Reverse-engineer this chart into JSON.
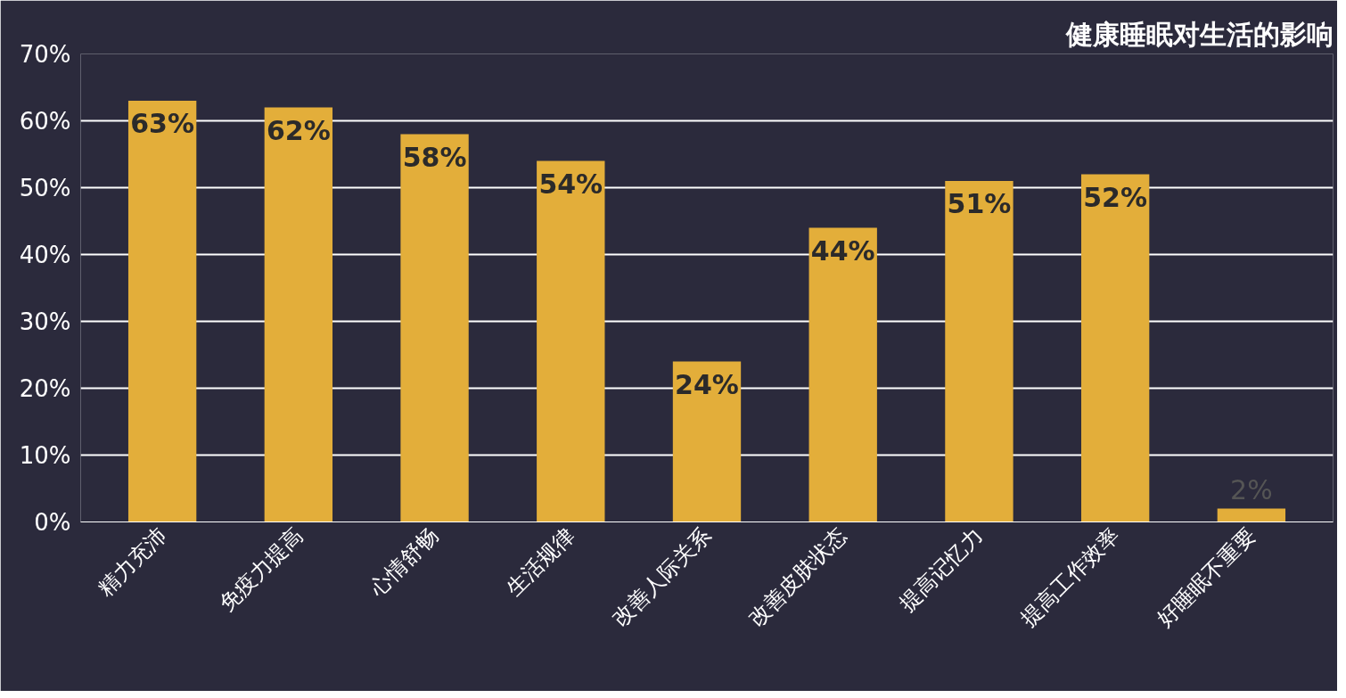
{
  "chart_data": {
    "type": "bar",
    "title": "健康睡眠对生活的影响",
    "categories": [
      "精力充沛",
      "免疫力提高",
      "心情舒畅",
      "生活规律",
      "改善人际关系",
      "改善皮肤状态",
      "提高记忆力",
      "提高工作效率",
      "好睡眠不重要"
    ],
    "values": [
      63,
      62,
      58,
      54,
      24,
      44,
      51,
      52,
      2
    ],
    "value_labels": [
      "63%",
      "62%",
      "58%",
      "54%",
      "24%",
      "44%",
      "51%",
      "52%",
      "2%"
    ],
    "color": "#e3ae3a",
    "ylim": [
      0,
      70
    ],
    "yticks": [
      {
        "value": 0,
        "label": "0%"
      },
      {
        "value": 10,
        "label": "10%"
      },
      {
        "value": 20,
        "label": "20%"
      },
      {
        "value": 30,
        "label": "30%"
      },
      {
        "value": 40,
        "label": "40%"
      },
      {
        "value": 50,
        "label": "50%"
      },
      {
        "value": 60,
        "label": "60%"
      },
      {
        "value": 70,
        "label": "70%"
      }
    ],
    "grid": "y"
  }
}
